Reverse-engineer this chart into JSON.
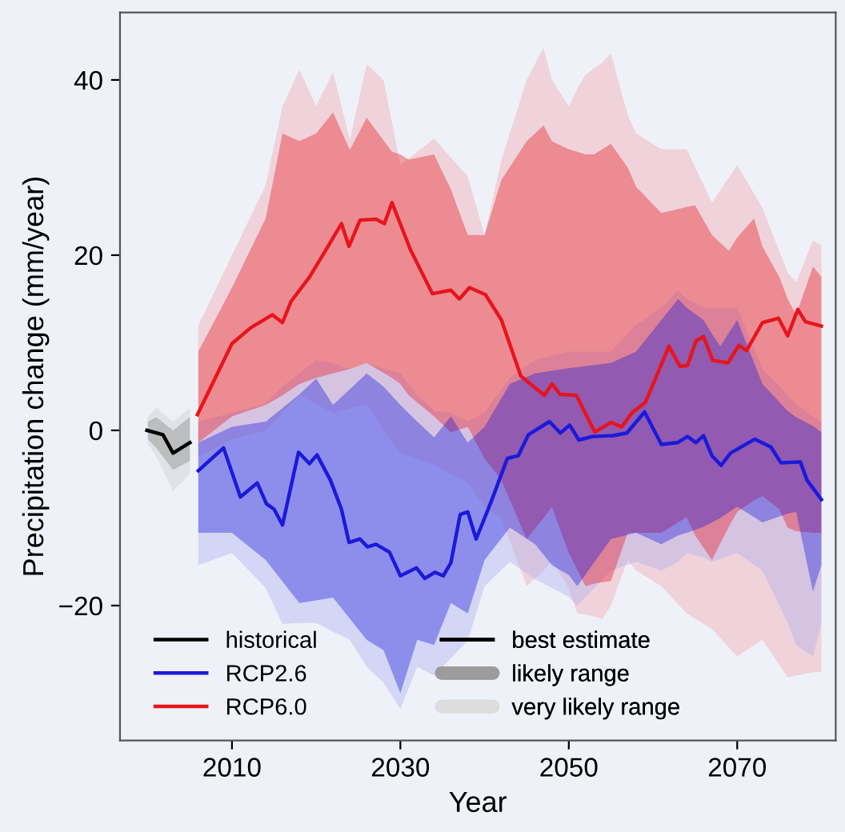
{
  "chart_data": {
    "type": "line",
    "xlabel": "Year",
    "ylabel": "Precipitation change (mm/year)",
    "xlim": [
      1996.7,
      2081.7
    ],
    "ylim": [
      -35.4,
      47.7
    ],
    "xticks": [
      2010,
      2030,
      2050,
      2070
    ],
    "yticks": [
      {
        "value": -20,
        "label": "−20"
      },
      0,
      20,
      40
    ],
    "grid": false,
    "legend": "bottom left",
    "line_style": "solid",
    "marker": "none",
    "annotations": [
      "best estimate",
      "likely range",
      "very likely range"
    ],
    "series": [
      {
        "type": "area",
        "color": "#c8c8c8",
        "x": [
          2000,
          2001,
          2003,
          2005
        ],
        "values": [
          null,
          null,
          null,
          null
        ],
        "lower": [
          -1.5,
          -3,
          -6.9,
          -5
        ],
        "upper": [
          1.5,
          2.6,
          1,
          2.5
        ]
      },
      {
        "type": "area",
        "color": "#f5a0a8",
        "x": [
          2006,
          2010,
          2014,
          2016,
          2018,
          2020,
          2022,
          2024,
          2026,
          2028,
          2030,
          2034,
          2038,
          2040,
          2042,
          2045,
          2047,
          2048,
          2050,
          2051,
          2052,
          2054,
          2055,
          2057,
          2058,
          2061,
          2064,
          2067,
          2070,
          2073,
          2076,
          2077,
          2079,
          2080
        ],
        "values": [
          null,
          null,
          null,
          null,
          null,
          null,
          null,
          null,
          null,
          null,
          null,
          null,
          null,
          null,
          null,
          null,
          null,
          null,
          null,
          null,
          null,
          null,
          null,
          null,
          null,
          null,
          null,
          null,
          null,
          null,
          null,
          null,
          null,
          null
        ],
        "lower": [
          -3,
          -1,
          0,
          2,
          4,
          3,
          2,
          2.5,
          3,
          0,
          -2.6,
          -4,
          -6,
          -8.7,
          -10,
          -17.8,
          -16,
          -14.8,
          -18,
          -20.9,
          -21,
          -21.5,
          -20,
          -14.8,
          -16,
          -17.8,
          -20.9,
          -22.7,
          -25.8,
          -23.9,
          -28.2,
          -28,
          -27.6,
          -27.6
        ],
        "upper": [
          12,
          20,
          28,
          37,
          41.2,
          37,
          40.9,
          33.2,
          41.8,
          40,
          30.3,
          33.3,
          29,
          22.3,
          30.9,
          40,
          43.7,
          40,
          37,
          39,
          40.6,
          42,
          43,
          36,
          33.9,
          32.1,
          32.1,
          26,
          30.3,
          25.4,
          18,
          16.9,
          21.7,
          21.1
        ]
      },
      {
        "type": "area",
        "color": "#a8a8f0",
        "x": [
          2006,
          2010,
          2014,
          2016,
          2018,
          2020,
          2022,
          2024,
          2026,
          2028,
          2030,
          2032,
          2034,
          2036,
          2038,
          2040,
          2043,
          2046,
          2048,
          2050,
          2051,
          2055,
          2058,
          2061,
          2063,
          2064,
          2066,
          2067,
          2070,
          2073,
          2076,
          2077,
          2079,
          2080
        ],
        "values": [
          null,
          null,
          null,
          null,
          null,
          null,
          null,
          null,
          null,
          null,
          null,
          null,
          null,
          null,
          null,
          null,
          null,
          null,
          null,
          null,
          null,
          null,
          null,
          null,
          null,
          null,
          null,
          null,
          null,
          null,
          null,
          null,
          null,
          null
        ],
        "lower": [
          -15.4,
          -14,
          -18,
          -22.1,
          -22,
          -22,
          -23,
          -23.9,
          -27,
          -28.8,
          -31.8,
          -27,
          -28,
          -26,
          -24,
          -17.8,
          -15,
          -17,
          -18,
          -19,
          -20,
          -16,
          -15,
          -16,
          -15,
          -14,
          -14.5,
          -15,
          -14,
          -16,
          -22,
          -24.5,
          -25.8,
          -22
        ],
        "upper": [
          1,
          2,
          3,
          5,
          6.5,
          8,
          7.7,
          7,
          7.7,
          7,
          6.5,
          4,
          2.2,
          2,
          1,
          2,
          6,
          8,
          8.5,
          9,
          9,
          9,
          12,
          14,
          16,
          15,
          14,
          14,
          14,
          7,
          4,
          3,
          1.5,
          1
        ]
      },
      {
        "type": "area",
        "color": "#808080",
        "x": [
          2000,
          2001,
          2003,
          2005
        ],
        "values": [
          null,
          null,
          null,
          null
        ],
        "lower": [
          -1,
          -2,
          -4.5,
          -3.5
        ],
        "upper": [
          1,
          1.5,
          0,
          1.5
        ]
      },
      {
        "type": "area",
        "color": "#e8141c",
        "x": [
          2006,
          2010,
          2014,
          2016,
          2018,
          2020,
          2022,
          2024,
          2026,
          2029,
          2030,
          2031,
          2034,
          2036,
          2038,
          2040,
          2042,
          2045,
          2047,
          2048,
          2050,
          2052,
          2053,
          2055,
          2057,
          2058,
          2061,
          2064,
          2065,
          2067,
          2069,
          2070,
          2072,
          2073,
          2075,
          2076,
          2077,
          2079,
          2080
        ],
        "values": [
          null,
          null,
          null,
          null,
          null,
          null,
          null,
          null,
          null,
          null,
          null,
          null,
          null,
          null,
          null,
          null,
          null,
          null,
          null,
          null,
          null,
          null,
          null,
          null,
          null,
          null,
          null,
          null,
          null,
          null,
          null,
          null,
          null,
          null,
          null,
          null,
          null,
          null,
          null
        ],
        "lower": [
          -1.4,
          1.6,
          2.9,
          4,
          5.3,
          6,
          6.5,
          7,
          7.7,
          6,
          5.3,
          4,
          1.6,
          -0.2,
          0.4,
          -3.2,
          -5.7,
          -12.4,
          -10,
          -8.7,
          -14,
          -17.8,
          -17.5,
          -17.2,
          -11.7,
          -11.7,
          -11.7,
          -9.9,
          -12,
          -14.8,
          -11,
          -9.3,
          -8,
          -7.5,
          -9,
          -11.1,
          -11.5,
          -11.7,
          -11.7
        ],
        "upper": [
          9,
          16.3,
          24.2,
          33.9,
          33,
          33.9,
          36.3,
          32,
          35.7,
          31.8,
          31.5,
          30.9,
          31.5,
          27.5,
          22.3,
          22.3,
          28.6,
          33,
          34.8,
          33,
          32.1,
          31.5,
          31.5,
          32.7,
          30,
          27.8,
          24.8,
          25.5,
          25.7,
          22.3,
          20.5,
          22,
          24.2,
          21,
          17.5,
          15,
          13.2,
          18.7,
          17.5
        ]
      },
      {
        "type": "area",
        "color": "#1a1adb",
        "x": [
          2006,
          2010,
          2014,
          2018,
          2020,
          2022,
          2026,
          2028,
          2030,
          2032,
          2034,
          2036,
          2038,
          2040,
          2043,
          2046,
          2048,
          2050,
          2051,
          2055,
          2058,
          2061,
          2063,
          2064,
          2066,
          2067,
          2068,
          2070,
          2073,
          2076,
          2077,
          2079,
          2080
        ],
        "values": [
          null,
          null,
          null,
          null,
          null,
          null,
          null,
          null,
          null,
          null,
          null,
          null,
          null,
          null,
          null,
          null,
          null,
          null,
          null,
          null,
          null,
          null,
          null,
          null,
          null,
          null,
          null,
          null,
          null,
          null,
          null,
          null,
          null
        ],
        "lower": [
          -11.7,
          -11.7,
          -14.8,
          -19.7,
          -19.4,
          -19.1,
          -23.9,
          -25.1,
          -30,
          -23.9,
          -24.5,
          -19.7,
          -20.9,
          -14.8,
          -11.1,
          -13,
          -15.4,
          -16.5,
          -17.8,
          -12.4,
          -11.7,
          -13,
          -12,
          -11.7,
          -11,
          -10.5,
          -10,
          -8.7,
          -10.5,
          -9.5,
          -9.3,
          -18.4,
          -15.4
        ],
        "upper": [
          -1.4,
          0.4,
          1,
          4.1,
          5.9,
          2.9,
          6.5,
          5,
          2.9,
          1,
          -0.8,
          1.6,
          -1.4,
          0.4,
          5.3,
          6.5,
          6.8,
          7.1,
          7.2,
          7.7,
          9,
          12.6,
          15,
          14,
          12.6,
          11,
          9.6,
          12.6,
          5.3,
          2.2,
          1.5,
          0.5,
          -0.2
        ]
      },
      {
        "name": "historical",
        "color": "#000000",
        "x": [
          1999.9,
          2001.8,
          2003,
          2005
        ],
        "values": [
          0,
          -0.5,
          -2.6,
          -1.4
        ]
      },
      {
        "name": "RCP2.6",
        "color": "#1a1adb",
        "x": [
          2006,
          2009,
          2011,
          2013,
          2014.1,
          2015,
          2016,
          2017.9,
          2019.2,
          2020.1,
          2021.7,
          2023,
          2023.9,
          2025.2,
          2026.1,
          2027.1,
          2028.7,
          2030,
          2031.9,
          2032.9,
          2034.1,
          2035.1,
          2036,
          2037.1,
          2038,
          2039,
          2040.8,
          2042.7,
          2044,
          2045.2,
          2047.7,
          2049,
          2050.1,
          2051.2,
          2052.8,
          2055.3,
          2056.9,
          2059,
          2061,
          2062.9,
          2064.1,
          2065.1,
          2066,
          2067,
          2068.1,
          2069.2,
          2072.1,
          2074,
          2075.2,
          2077.5,
          2078.3,
          2080
        ],
        "values": [
          -4.6,
          -2,
          -7.6,
          -6,
          -8.4,
          -9,
          -10.8,
          -2.5,
          -3.8,
          -2.8,
          -5.7,
          -9,
          -12.8,
          -12.4,
          -13.3,
          -13,
          -13.9,
          -16.6,
          -15.7,
          -16.9,
          -16.2,
          -16.6,
          -15.1,
          -9.6,
          -9.3,
          -12.4,
          -8.1,
          -3.2,
          -2.9,
          -0.5,
          1,
          -0.3,
          0.6,
          -1.1,
          -0.7,
          -0.6,
          -0.3,
          2.1,
          -1.6,
          -1.4,
          -0.7,
          -1.4,
          -0.6,
          -2.9,
          -4,
          -2.6,
          -1,
          -1.9,
          -3.7,
          -3.6,
          -5.7,
          -7.9
        ]
      },
      {
        "name": "RCP6.0",
        "color": "#e8141c",
        "x": [
          2005.9,
          2010,
          2012.2,
          2014.8,
          2016,
          2017,
          2019.2,
          2021.1,
          2023,
          2023.9,
          2025.2,
          2027.1,
          2028.1,
          2029,
          2031.2,
          2033.8,
          2036,
          2037,
          2038.2,
          2040.1,
          2042,
          2044.3,
          2047.1,
          2048,
          2049,
          2050.9,
          2053.1,
          2055,
          2056.3,
          2057.5,
          2059.1,
          2061.9,
          2063.2,
          2064.1,
          2065.1,
          2066,
          2067.1,
          2068.9,
          2070.2,
          2071.1,
          2073,
          2074.9,
          2076,
          2077.2,
          2078.1,
          2080
        ],
        "values": [
          1.8,
          9.9,
          11.7,
          13.2,
          12.3,
          14.7,
          17.5,
          20.5,
          23.6,
          21,
          24,
          24.1,
          23.6,
          26,
          20.6,
          15.6,
          16,
          15,
          16.3,
          15.5,
          12.6,
          6.2,
          4,
          5.3,
          4.1,
          4,
          -0.2,
          0.9,
          0.4,
          2,
          3.2,
          9.6,
          7.3,
          7.4,
          10.2,
          10.7,
          8,
          7.7,
          9.7,
          9.1,
          12.3,
          12.8,
          10.8,
          13.8,
          12.4,
          11.9
        ]
      }
    ]
  }
}
